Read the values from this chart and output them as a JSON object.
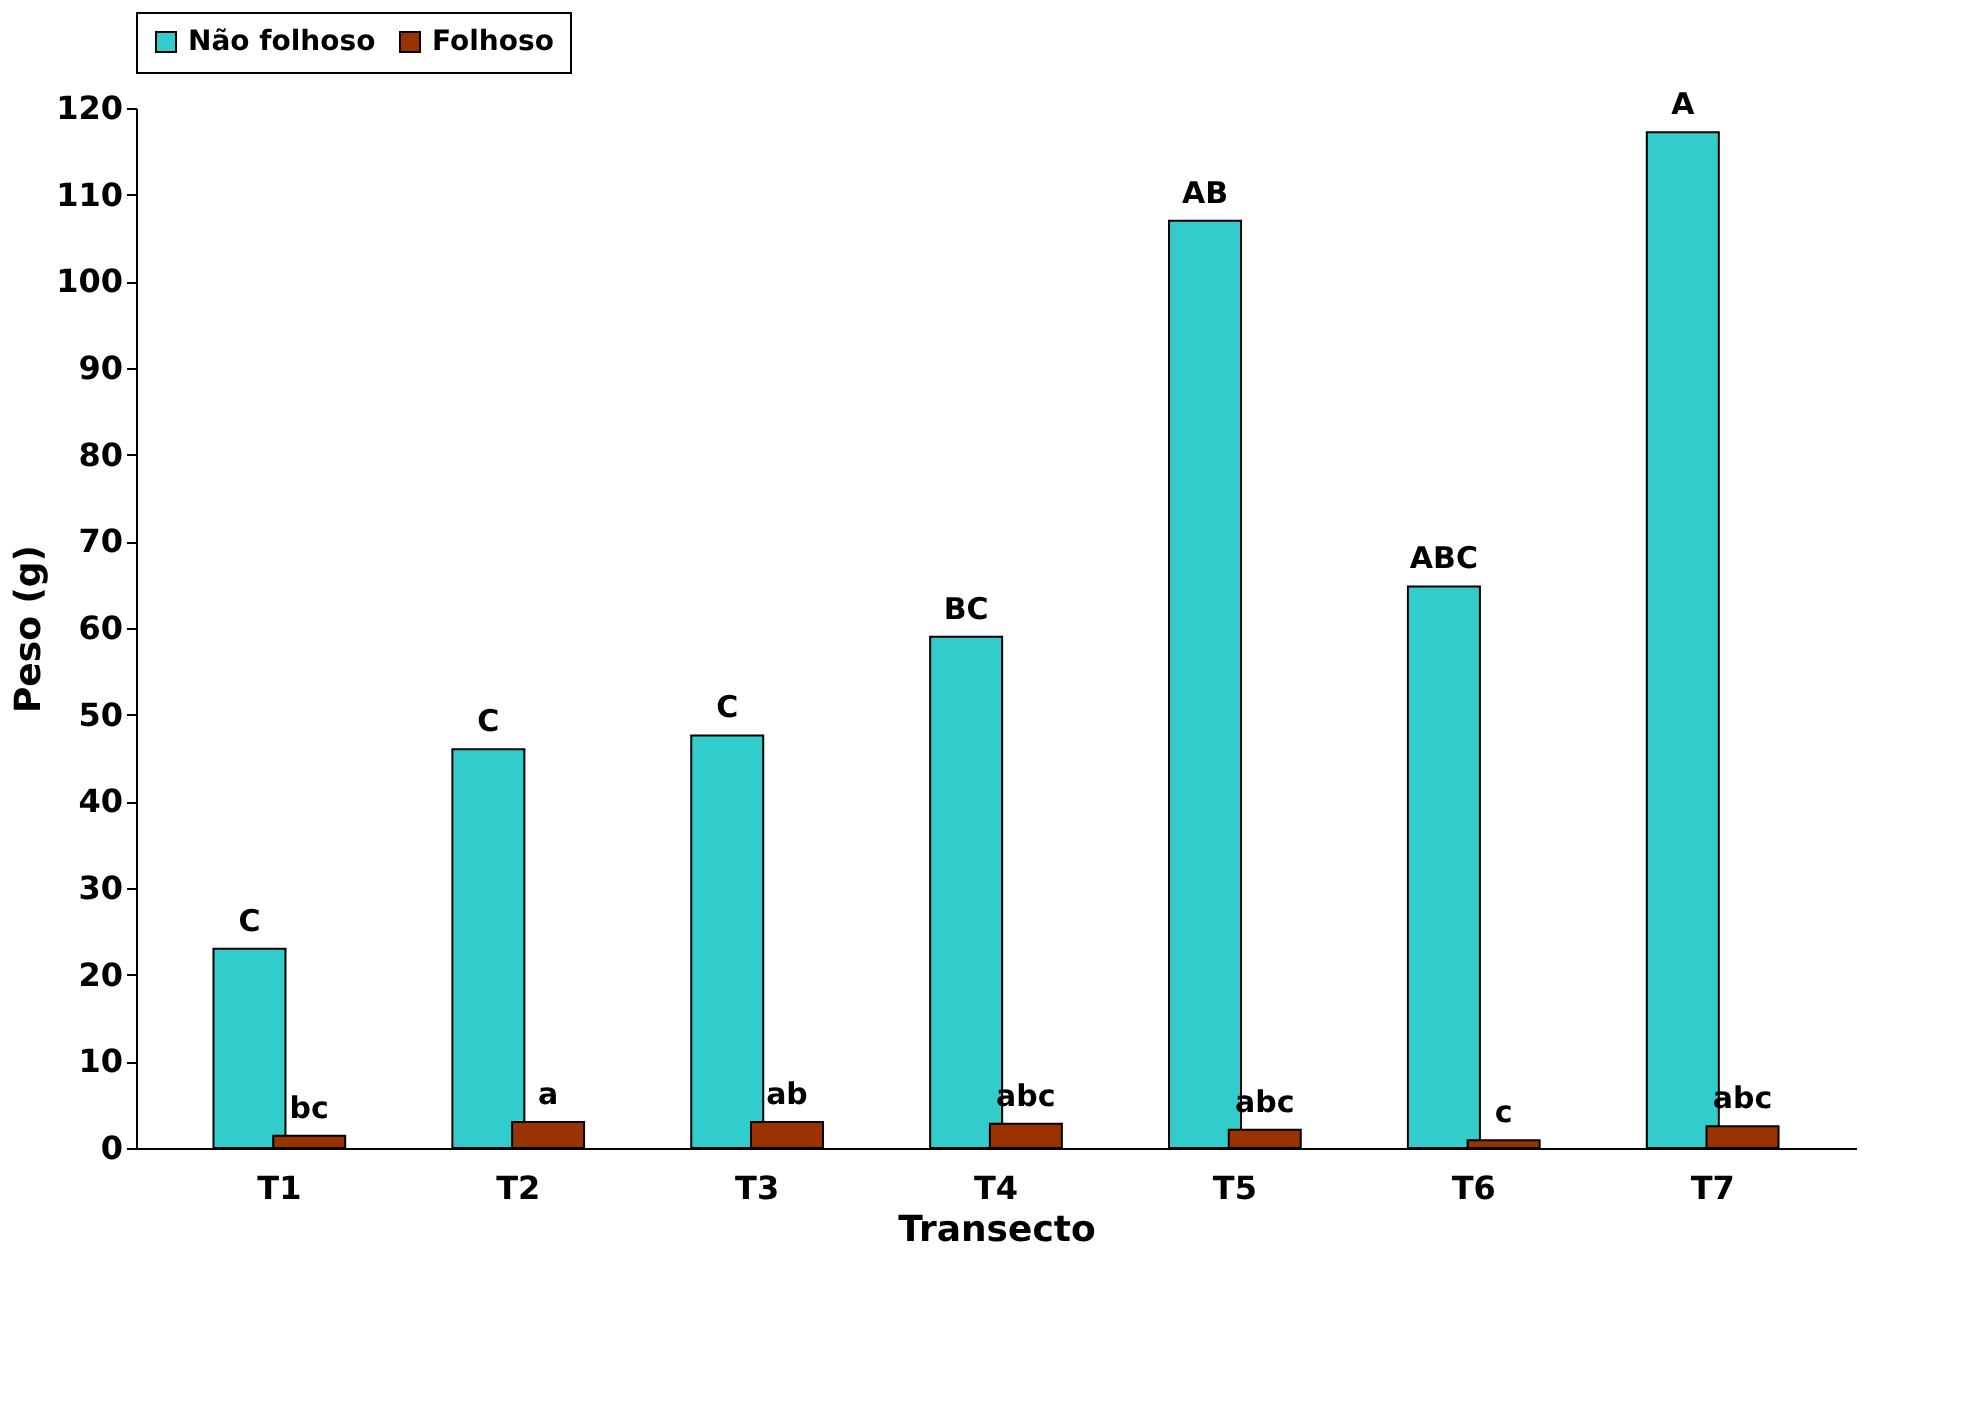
{
  "chart_data": {
    "type": "bar",
    "xlabel": "Transecto",
    "ylabel": "Peso (g)",
    "categories": [
      "T1",
      "T2",
      "T3",
      "T4",
      "T5",
      "T6",
      "T7"
    ],
    "series": [
      {
        "name": "Não folhoso",
        "color": "#33cccc",
        "values": [
          23,
          46,
          47.6,
          59,
          107,
          64.8,
          117.2
        ],
        "value_labels": [
          "C",
          "C",
          "C",
          "BC",
          "AB",
          "ABC",
          "A"
        ]
      },
      {
        "name": "Folhoso",
        "color": "#993300",
        "values": [
          1.4,
          3,
          3,
          2.8,
          2.1,
          0.9,
          2.5
        ],
        "value_labels": [
          "bc",
          "a",
          "ab",
          "abc",
          "abc",
          "c",
          "abc"
        ]
      }
    ],
    "ylim": [
      0,
      120
    ],
    "yticks": [
      0,
      10,
      20,
      30,
      40,
      50,
      60,
      70,
      80,
      90,
      100,
      110,
      120
    ],
    "grid": false,
    "legend": "top"
  }
}
